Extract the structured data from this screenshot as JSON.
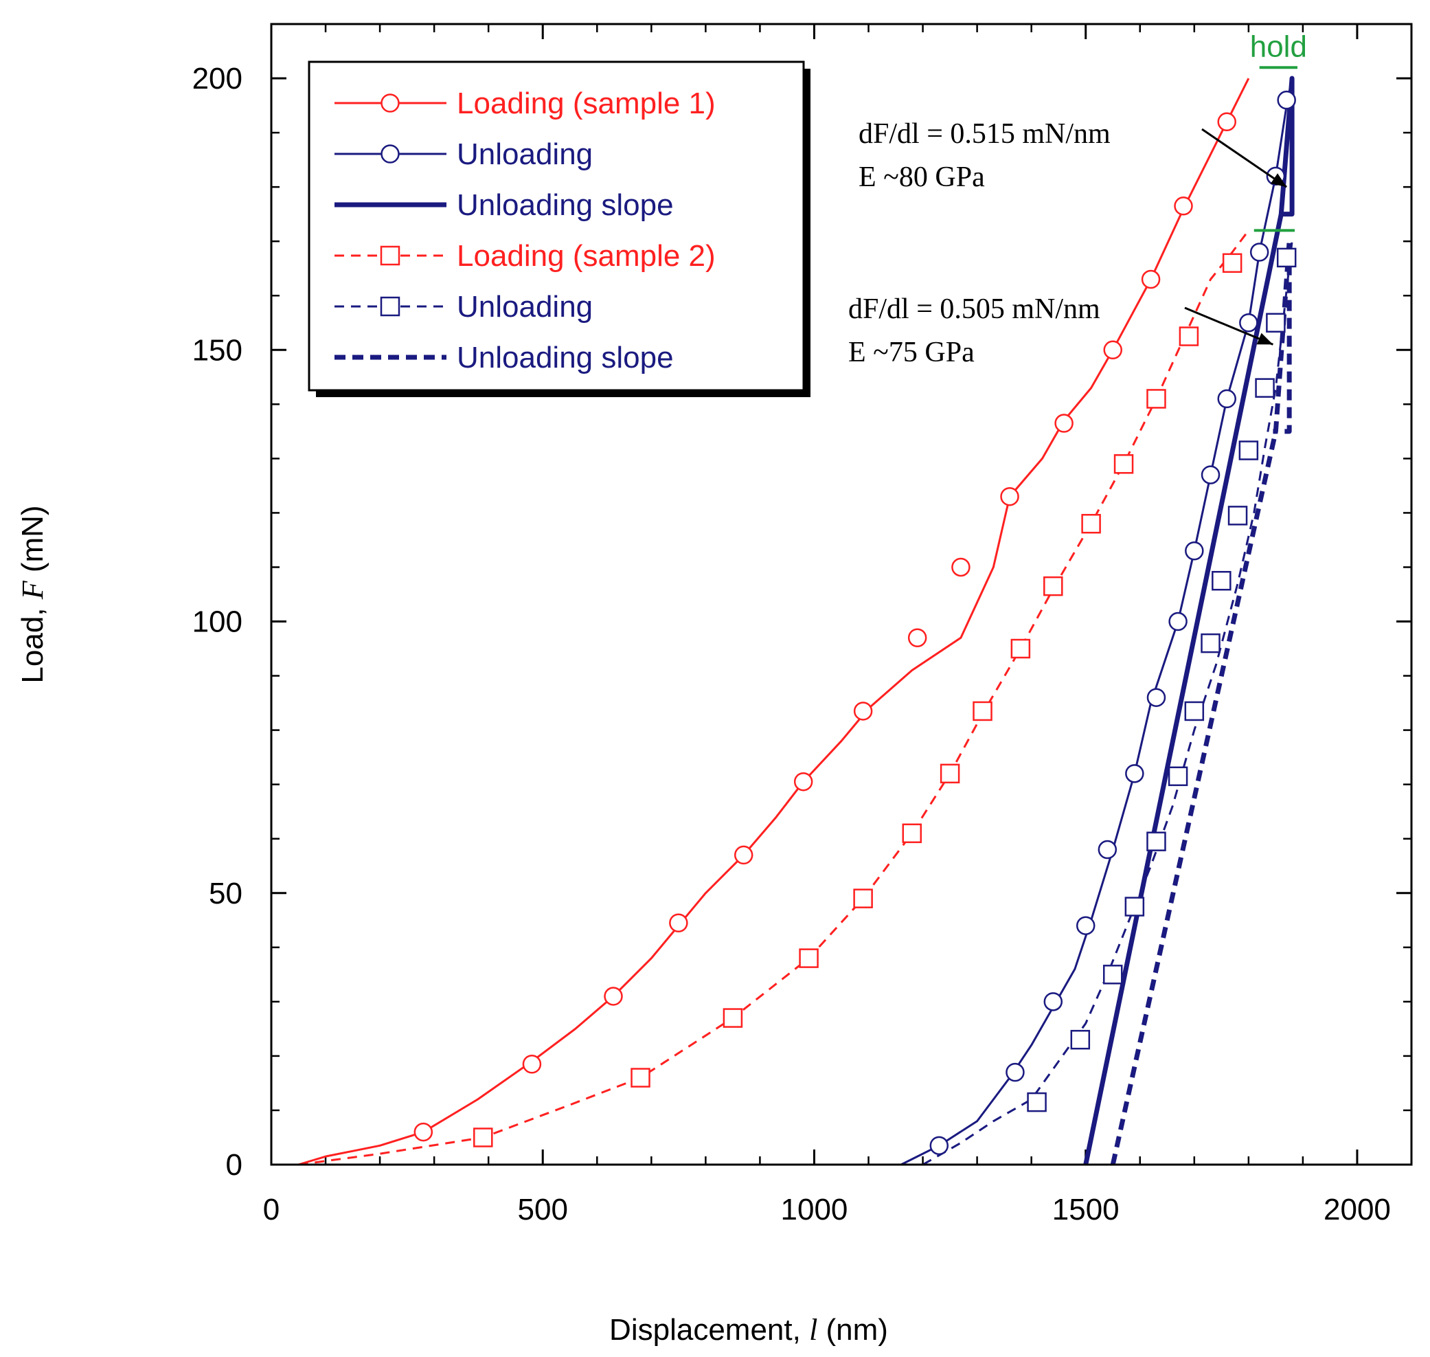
{
  "chart_data": {
    "type": "line",
    "xlabel": "Displacement, l (nm)",
    "ylabel": "Load, F (mN)",
    "xlabel_parts": [
      "Displacement, ",
      "l",
      " (nm)"
    ],
    "ylabel_parts": [
      "Load, ",
      "F",
      " (mN)"
    ],
    "xlim": [
      0,
      2100
    ],
    "ylim": [
      0,
      210
    ],
    "x_ticks": [
      0,
      500,
      1000,
      1500,
      2000
    ],
    "y_ticks": [
      0,
      50,
      100,
      150,
      200
    ],
    "x_tick_labels": [
      "0",
      "500",
      "1000",
      "1500",
      "2000"
    ],
    "y_tick_labels": [
      "0",
      "50",
      "100",
      "150",
      "200"
    ],
    "legend_position": "top-left",
    "series": [
      {
        "name": "Loading (sample 1)",
        "color": "#ff2020",
        "style": "solid",
        "marker": "circle",
        "x": [
          50,
          100,
          200,
          280,
          380,
          480,
          560,
          630,
          700,
          750,
          800,
          870,
          930,
          980,
          1050,
          1100,
          1180,
          1270,
          1330,
          1360,
          1420,
          1460,
          1510,
          1550,
          1620,
          1680,
          1740,
          1760,
          1800
        ],
        "y": [
          0,
          1.5,
          3.5,
          6,
          12,
          19,
          25,
          31,
          38,
          44,
          50,
          57,
          64,
          70.5,
          78,
          84,
          91,
          97,
          110,
          123,
          130,
          137,
          143,
          150,
          163,
          176,
          188,
          192,
          200
        ],
        "markers_x": [
          280,
          480,
          630,
          750,
          870,
          980,
          1090,
          1190,
          1270,
          1360,
          1460,
          1550,
          1620,
          1680,
          1760
        ],
        "markers_y": [
          6,
          18.5,
          31,
          44.5,
          57,
          70.5,
          83.5,
          97,
          110,
          123,
          136.5,
          150,
          163,
          176.5,
          192
        ]
      },
      {
        "name": "Unloading",
        "color": "#1a1a80",
        "style": "solid",
        "marker": "circle",
        "x": [
          1160,
          1230,
          1300,
          1360,
          1400,
          1440,
          1480,
          1510,
          1550,
          1590,
          1620,
          1670,
          1700,
          1730,
          1760,
          1800,
          1820,
          1850,
          1870,
          1880
        ],
        "y": [
          0,
          3.5,
          8,
          16,
          22,
          29,
          36,
          45,
          58,
          72,
          85,
          100,
          113,
          127,
          141,
          155,
          168,
          182,
          195,
          200
        ],
        "markers_x": [
          1230,
          1370,
          1440,
          1500,
          1540,
          1590,
          1630,
          1670,
          1700,
          1730,
          1760,
          1800,
          1820,
          1850,
          1870
        ],
        "markers_y": [
          3.5,
          17,
          30,
          44,
          58,
          72,
          86,
          100,
          113,
          127,
          141,
          155,
          168,
          182,
          196
        ]
      },
      {
        "name": "Unloading slope",
        "color": "#1a1a80",
        "style": "thick-solid",
        "marker": "none",
        "x": [
          1500,
          1860,
          1880,
          1880,
          1860
        ],
        "y": [
          0,
          175,
          200,
          175,
          175
        ]
      },
      {
        "name": "Loading (sample 2)",
        "color": "#ff2020",
        "style": "dashed",
        "marker": "square",
        "x": [
          50,
          200,
          390,
          550,
          680,
          850,
          990,
          1090,
          1180,
          1250,
          1310,
          1380,
          1440,
          1510,
          1570,
          1630,
          1680,
          1730,
          1770,
          1800
        ],
        "y": [
          0,
          2,
          5,
          11,
          16,
          27,
          38,
          49,
          61,
          72,
          83,
          95,
          106,
          118,
          129,
          141,
          152,
          163,
          168,
          172
        ],
        "markers_x": [
          390,
          680,
          850,
          990,
          1090,
          1180,
          1250,
          1310,
          1380,
          1440,
          1510,
          1570,
          1630,
          1690,
          1770
        ],
        "markers_y": [
          5,
          16,
          27,
          38,
          49,
          61,
          72,
          83.5,
          95,
          106.5,
          118,
          129,
          141,
          152.5,
          166
        ]
      },
      {
        "name": "Unloading",
        "color": "#1a1a80",
        "style": "dashed",
        "marker": "square",
        "x": [
          1200,
          1270,
          1330,
          1400,
          1450,
          1500,
          1540,
          1580,
          1620,
          1660,
          1700,
          1740,
          1780,
          1810,
          1830,
          1850,
          1880
        ],
        "y": [
          0,
          4,
          8,
          12,
          19,
          26,
          35,
          45,
          55,
          66,
          80,
          92,
          107,
          120,
          132,
          143,
          170
        ],
        "markers_x": [
          1410,
          1490,
          1550,
          1590,
          1630,
          1670,
          1700,
          1730,
          1750,
          1780,
          1800,
          1830,
          1850,
          1870
        ],
        "markers_y": [
          11.5,
          23,
          35,
          47.5,
          59.5,
          71.5,
          83.5,
          96,
          107.5,
          119.5,
          131.5,
          143,
          155,
          167
        ]
      },
      {
        "name": "Unloading slope",
        "color": "#1a1a80",
        "style": "thick-dashed",
        "marker": "none",
        "x": [
          1550,
          1850,
          1875,
          1875,
          1845
        ],
        "y": [
          0,
          135,
          170,
          135,
          135
        ]
      }
    ],
    "hold_segments": [
      {
        "label": "hold",
        "x": [
          1820,
          1890
        ],
        "y": [
          202,
          202
        ]
      },
      {
        "label": "",
        "x": [
          1810,
          1885
        ],
        "y": [
          172,
          172
        ]
      }
    ],
    "annotations": [
      {
        "line1": "dF/dl = 0.515 mN/nm",
        "line2": "E ~80 GPa",
        "arrow_to": [
          1870,
          180
        ]
      },
      {
        "line1": "dF/dl = 0.505 mN/nm",
        "line2": "E ~75 GPa",
        "arrow_to": [
          1845,
          151
        ]
      }
    ],
    "hold_label": "hold"
  }
}
